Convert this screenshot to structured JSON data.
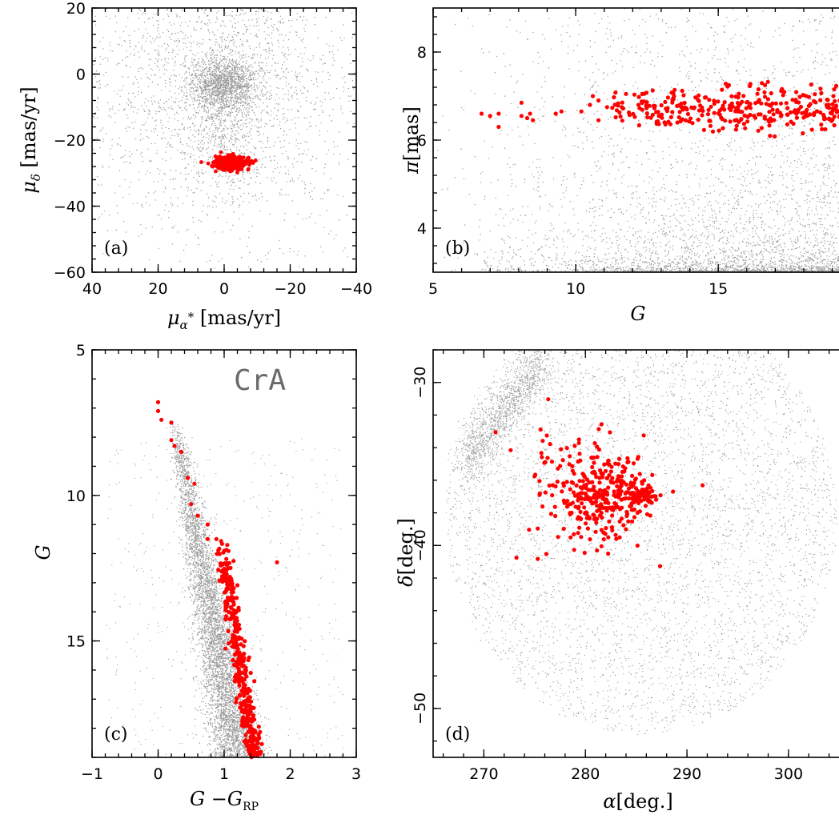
{
  "colors": {
    "field": "#9a9a9a",
    "members": "#ff0000"
  },
  "chart_data": [
    {
      "panel": "a",
      "type": "scatter",
      "panel_label": "(a)",
      "xlabel": "μα* [mas/yr]",
      "ylabel": "μδ [mas/yr]",
      "xlim": [
        40,
        -40
      ],
      "ylim": [
        -60,
        20
      ],
      "xticks": [
        40,
        20,
        0,
        -20,
        -40
      ],
      "yticks": [
        20,
        0,
        -20,
        -40,
        -60
      ],
      "series": [
        {
          "role": "field",
          "color": "#9a9a9a",
          "clouds": [
            {
              "cx": 0,
              "cy": -3,
              "sx": 22,
              "sy": 24,
              "n": 2600
            },
            {
              "cx": 0,
              "cy": -3,
              "sx": 5,
              "sy": 4,
              "n": 1400
            },
            {
              "cx": 0,
              "cy": -14,
              "sx": 6,
              "sy": 10,
              "n": 500
            }
          ]
        },
        {
          "role": "members",
          "color": "#ff0000",
          "clouds": [
            {
              "cx": -2,
              "cy": -27,
              "sx": 2.5,
              "sy": 1.0,
              "n": 380
            }
          ]
        }
      ]
    },
    {
      "panel": "b",
      "type": "scatter",
      "panel_label": "(b)",
      "xlabel": "G",
      "ylabel": "π[mas]",
      "xlim": [
        5,
        19.6
      ],
      "ylim": [
        3,
        9
      ],
      "xticks": [
        5,
        10,
        15
      ],
      "yticks": [
        4,
        6,
        8
      ],
      "series": [
        {
          "role": "field",
          "color": "#9a9a9a",
          "description_points": "faint field stars concentrated at low parallax and faint G"
        },
        {
          "role": "members",
          "color": "#ff0000",
          "points": [
            [
              6.7,
              6.6
            ],
            [
              7.0,
              6.55
            ],
            [
              7.3,
              6.6
            ],
            [
              7.3,
              6.3
            ],
            [
              8.1,
              6.85
            ],
            [
              8.1,
              6.55
            ],
            [
              8.3,
              6.5
            ],
            [
              8.4,
              6.6
            ],
            [
              8.5,
              6.45
            ],
            [
              9.3,
              6.6
            ],
            [
              9.5,
              6.65
            ],
            [
              10.2,
              6.65
            ],
            [
              10.5,
              6.8
            ],
            [
              10.6,
              7.0
            ],
            [
              10.8,
              6.9
            ],
            [
              10.8,
              6.45
            ],
            [
              11.1,
              6.75
            ]
          ],
          "cloud": {
            "xmin": 11.2,
            "xmax": 19.6,
            "cy": 6.7,
            "sy": 0.25,
            "n": 330
          }
        }
      ]
    },
    {
      "panel": "c",
      "type": "scatter",
      "panel_label": "(c)",
      "annotation": "CrA",
      "xlabel": "G − GRP",
      "ylabel": "G",
      "xlim": [
        -1,
        3
      ],
      "ylim": [
        19,
        5
      ],
      "xticks": [
        -1,
        0,
        1,
        2,
        3
      ],
      "yticks": [
        5,
        10,
        15
      ],
      "series": [
        {
          "role": "field",
          "color": "#9a9a9a",
          "description_points": "main sequence from (0.3,8) to (1.3,19)"
        },
        {
          "role": "members",
          "color": "#ff0000",
          "points": [
            [
              0.0,
              6.8
            ],
            [
              0.0,
              7.1
            ],
            [
              0.05,
              7.4
            ],
            [
              0.2,
              7.5
            ],
            [
              0.2,
              8.1
            ],
            [
              0.25,
              8.3
            ],
            [
              0.35,
              8.5
            ],
            [
              0.45,
              9.4
            ],
            [
              0.55,
              9.6
            ],
            [
              0.5,
              10.3
            ],
            [
              0.6,
              10.7
            ],
            [
              0.75,
              11.0
            ],
            [
              0.75,
              11.5
            ],
            [
              1.8,
              12.3
            ]
          ],
          "track": {
            "g_from": 11.5,
            "g_to": 19,
            "c_at_top": 0.95,
            "c_at_bottom": 1.45,
            "n": 380
          }
        }
      ]
    },
    {
      "panel": "d",
      "type": "scatter",
      "panel_label": "(d)",
      "xlabel": "α[deg.]",
      "ylabel": "δ[deg.]",
      "xlim": [
        265,
        306
      ],
      "ylim": [
        -53,
        -28
      ],
      "xticks": [
        270,
        280,
        290,
        300
      ],
      "yticks": [
        -30,
        -40,
        -50
      ],
      "series": [
        {
          "role": "field",
          "color": "#9a9a9a",
          "description_points": "roughly circular sky area centred near (285,-38)"
        },
        {
          "role": "members",
          "color": "#ff0000",
          "clouds": [
            {
              "cx": 281.5,
              "cy": -37.1,
              "sx": 2.0,
              "sy": 1.2,
              "n": 240
            },
            {
              "cx": 285.5,
              "cy": -37.0,
              "sx": 0.9,
              "sy": 0.4,
              "n": 80
            },
            {
              "cx": 279,
              "cy": -36.5,
              "sx": 3.5,
              "sy": 2.3,
              "n": 90
            }
          ]
        }
      ]
    }
  ]
}
